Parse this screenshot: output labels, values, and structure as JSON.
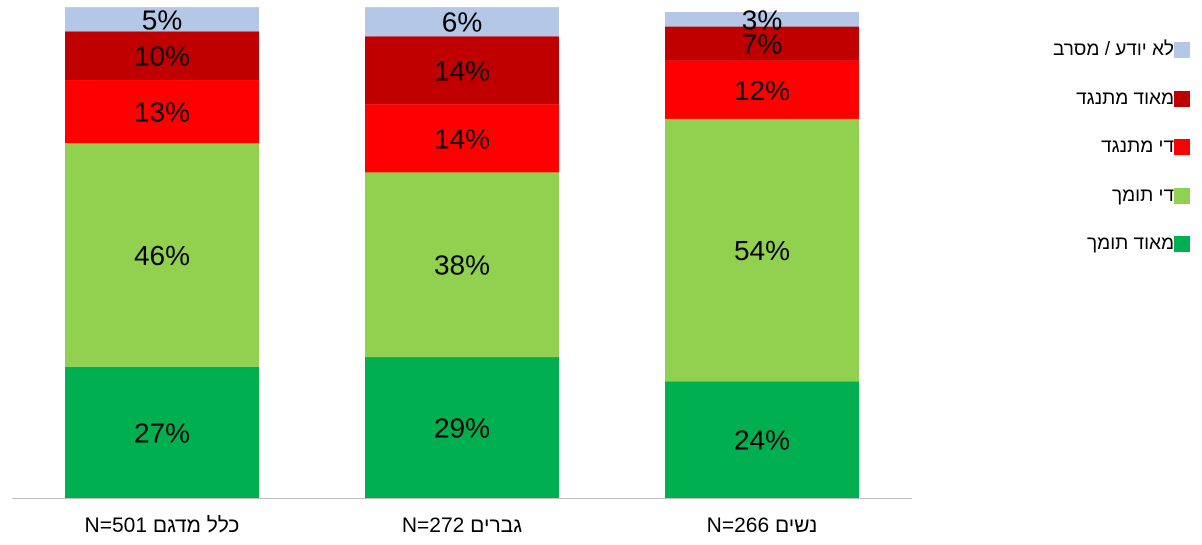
{
  "chart_data": {
    "type": "bar",
    "stacked": true,
    "categories": [
      "כלל מדגם N=501",
      "גברים N=272",
      "נשים N=266"
    ],
    "ylim": [
      0,
      100
    ],
    "grid": false,
    "legend_position": "right",
    "series": [
      {
        "name": "מאוד תומך",
        "color": "#00b050",
        "values": [
          27,
          29,
          24
        ],
        "labels": [
          "27%",
          "29%",
          "24%"
        ]
      },
      {
        "name": "די תומך",
        "color": "#92d050",
        "values": [
          46,
          38,
          54
        ],
        "labels": [
          "46%",
          "38%",
          "54%"
        ]
      },
      {
        "name": "די מתנגד",
        "color": "#ff0000",
        "values": [
          13,
          14,
          12
        ],
        "labels": [
          "13%",
          "14%",
          "12%"
        ]
      },
      {
        "name": "מאוד מתנגד",
        "color": "#c00000",
        "values": [
          10,
          14,
          7
        ],
        "labels": [
          "10%",
          "14%",
          "7%"
        ]
      },
      {
        "name": "לא יודע / מסרב",
        "color": "#b4c7e7",
        "values": [
          5,
          6,
          3
        ],
        "labels": [
          "5%",
          "6%",
          "3%"
        ]
      }
    ]
  }
}
